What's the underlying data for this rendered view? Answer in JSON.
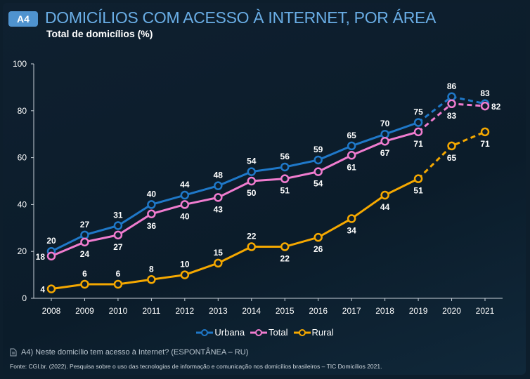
{
  "header": {
    "badge": "A4",
    "title": "DOMICÍLIOS COM ACESSO À INTERNET, POR ÁREA",
    "subtitle": "Total de domicílios (%)"
  },
  "footer": {
    "note": "A4) Neste domicílio tem acesso à Internet? (ESPONTÂNEA – RU)",
    "source": "Fonte: CGI.br. (2022). Pesquisa sobre o uso das tecnologias de informação e comunicação nos domicílios brasileiros – TIC Domicílios 2021.",
    "note_icon": "document-icon"
  },
  "chart_data": {
    "type": "line",
    "title": "DOMICÍLIOS COM ACESSO À INTERNET, POR ÁREA",
    "subtitle": "Total de domicílios (%)",
    "x": [
      "2008",
      "2009",
      "2010",
      "2011",
      "2012",
      "2013",
      "2014",
      "2015",
      "2016",
      "2017",
      "2018",
      "2019",
      "2020",
      "2021"
    ],
    "ylim": [
      0,
      100
    ],
    "yticks": [
      0,
      20,
      40,
      60,
      80,
      100
    ],
    "grid": false,
    "legend_placement": "bottom",
    "dashed_from": "2019",
    "series": [
      {
        "name": "Urbana",
        "color": "#1f78c8",
        "values": [
          20,
          27,
          31,
          40,
          44,
          48,
          54,
          56,
          59,
          65,
          70,
          75,
          86,
          83
        ],
        "label_pos": [
          "above",
          "above",
          "above",
          "above",
          "above",
          "above",
          "above",
          "above",
          "above",
          "above",
          "above",
          "above",
          "above",
          "above"
        ]
      },
      {
        "name": "Total",
        "color": "#f07ccf",
        "values": [
          18,
          24,
          27,
          36,
          40,
          43,
          50,
          51,
          54,
          61,
          67,
          71,
          83,
          82
        ],
        "label_pos": [
          "left",
          "below",
          "below",
          "below",
          "below",
          "below",
          "below",
          "below",
          "below",
          "below",
          "below",
          "below",
          "below",
          "right"
        ]
      },
      {
        "name": "Rural",
        "color": "#f5a800",
        "values": [
          4,
          6,
          6,
          8,
          10,
          15,
          22,
          22,
          26,
          34,
          44,
          51,
          65,
          71
        ],
        "label_pos": [
          "left",
          "above",
          "above",
          "above",
          "above",
          "above",
          "above",
          "below",
          "below",
          "below",
          "below",
          "below",
          "below",
          "below"
        ]
      }
    ]
  }
}
